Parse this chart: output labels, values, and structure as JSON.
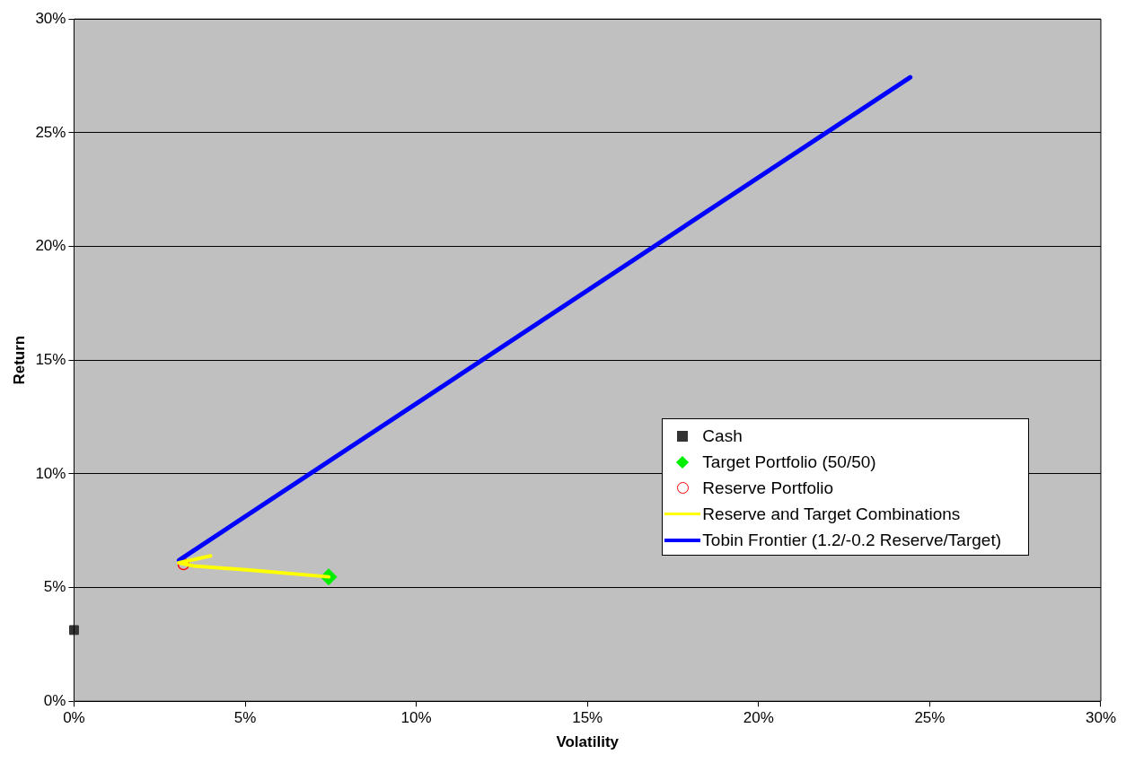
{
  "chart_data": {
    "type": "scatter",
    "xlabel": "Volatility",
    "ylabel": "Return",
    "xlim": [
      0,
      30
    ],
    "xticks": [
      {
        "value": 0,
        "label": "0%"
      },
      {
        "value": 5,
        "label": "5%"
      },
      {
        "value": 10,
        "label": "10%"
      },
      {
        "value": 15,
        "label": "15%"
      },
      {
        "value": 20,
        "label": "20%"
      },
      {
        "value": 25,
        "label": "25%"
      },
      {
        "value": 30,
        "label": "30%"
      }
    ],
    "ylim": [
      0,
      30
    ],
    "yticks": [
      {
        "value": 0,
        "label": "0%"
      },
      {
        "value": 5,
        "label": "5%"
      },
      {
        "value": 10,
        "label": "10%"
      },
      {
        "value": 15,
        "label": "15%"
      },
      {
        "value": 20,
        "label": "20%"
      },
      {
        "value": 25,
        "label": "25%"
      },
      {
        "value": 30,
        "label": "30%"
      }
    ],
    "grid": "y",
    "legend": "right",
    "series": [
      {
        "name": "Cash",
        "marker": "square",
        "color": "#333333",
        "x": [
          0
        ],
        "values": [
          3.13
        ]
      },
      {
        "name": "Target Portfolio (50/50)",
        "marker": "diamond",
        "color": "#00ee00",
        "x": [
          7.44
        ],
        "values": [
          5.47
        ]
      },
      {
        "name": "Reserve Portfolio",
        "marker": "circle",
        "color": "#ff0000",
        "x": [
          3.2
        ],
        "values": [
          6.03
        ]
      },
      {
        "name": "Reserve and Target Combinations",
        "type": "line",
        "marker": "none",
        "color": "#ffff00",
        "x": [
          7.44,
          5.35,
          3.5,
          3.06,
          3.99
        ],
        "values": [
          5.47,
          5.74,
          5.95,
          6.09,
          6.39
        ]
      },
      {
        "name": "Tobin Frontier (1.2/-0.2 Reserve/Target)",
        "type": "line",
        "marker": "none",
        "color": "#0000ff",
        "x": [
          3.07,
          24.43
        ],
        "values": [
          6.2,
          27.44
        ]
      }
    ]
  }
}
